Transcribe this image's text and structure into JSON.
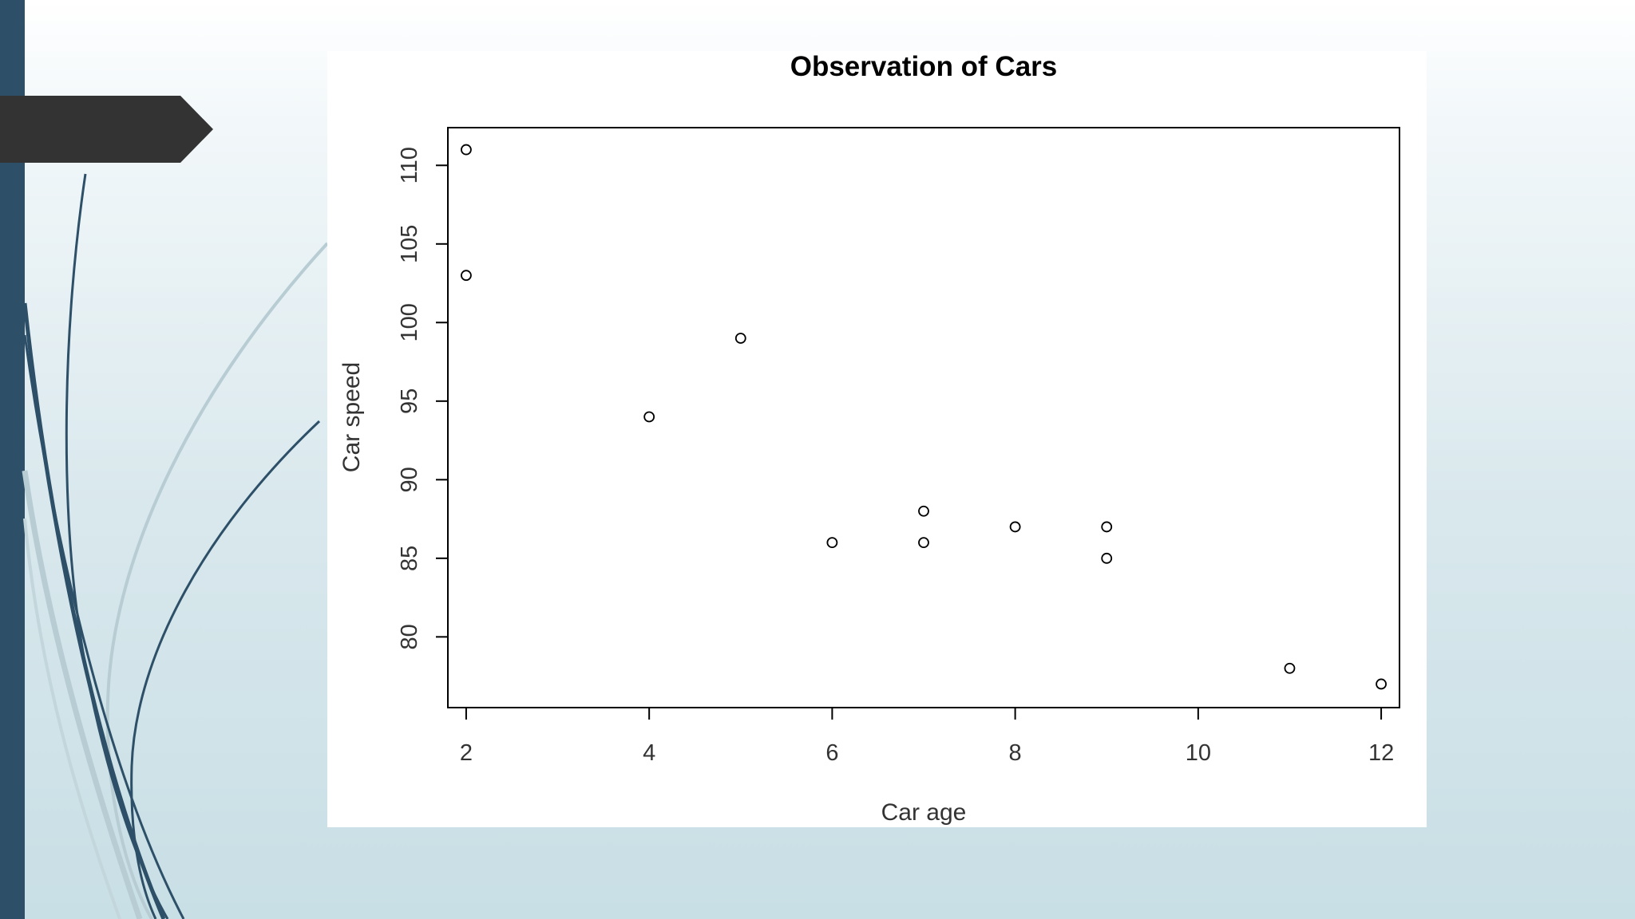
{
  "colors": {
    "left_band": "#2d5068",
    "arrow_tab": "#333333",
    "swoosh_dark": "#2d5068",
    "swoosh_light": "#b7cdd3",
    "plot_ink": "#000000",
    "axis_text": "#333333"
  },
  "chart_data": {
    "type": "scatter",
    "title": "Observation of Cars",
    "xlabel": "Car age",
    "ylabel": "Car speed",
    "xlim": [
      1.8,
      12.2
    ],
    "ylim": [
      75.5,
      112.4
    ],
    "x_ticks": [
      2,
      4,
      6,
      8,
      10,
      12
    ],
    "y_ticks": [
      80,
      85,
      90,
      95,
      100,
      105,
      110
    ],
    "grid": false,
    "legend": "none",
    "marker": "open-circle",
    "points": [
      {
        "x": 2,
        "y": 111
      },
      {
        "x": 2,
        "y": 103
      },
      {
        "x": 4,
        "y": 94
      },
      {
        "x": 5,
        "y": 99
      },
      {
        "x": 6,
        "y": 86
      },
      {
        "x": 7,
        "y": 88
      },
      {
        "x": 7,
        "y": 86
      },
      {
        "x": 8,
        "y": 87
      },
      {
        "x": 9,
        "y": 87
      },
      {
        "x": 9,
        "y": 85
      },
      {
        "x": 11,
        "y": 78
      },
      {
        "x": 12,
        "y": 77
      }
    ]
  }
}
